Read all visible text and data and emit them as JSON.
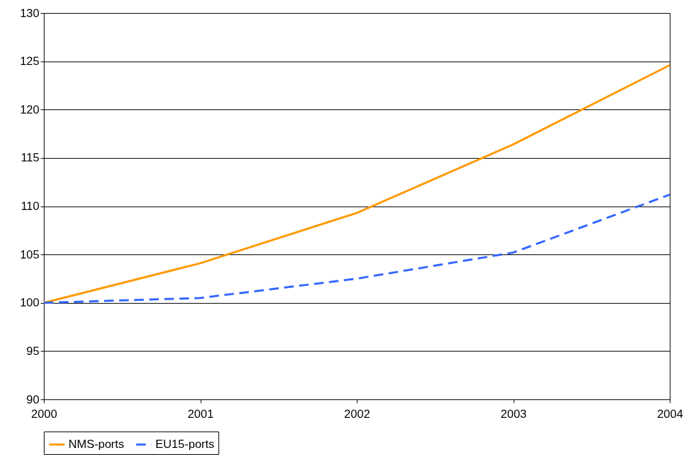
{
  "chart_data": {
    "type": "line",
    "x": [
      2000,
      2001,
      2002,
      2003,
      2004
    ],
    "series": [
      {
        "name": "NMS-ports",
        "color": "#ff9900",
        "line_style": "solid",
        "values": [
          100,
          104.1,
          109.3,
          116.4,
          124.6
        ]
      },
      {
        "name": "EU15-ports",
        "color": "#3366ff",
        "line_style": "dashed",
        "values": [
          100,
          100.5,
          102.5,
          105.2,
          111.2
        ]
      }
    ],
    "xlim": [
      2000,
      2004
    ],
    "xticks": [
      2000,
      2001,
      2002,
      2003,
      2004
    ],
    "ylim": [
      90,
      130
    ],
    "yticks": [
      90,
      95,
      100,
      105,
      110,
      115,
      120,
      125,
      130
    ],
    "grid": "y",
    "legend": "bottom",
    "marker": "none"
  }
}
